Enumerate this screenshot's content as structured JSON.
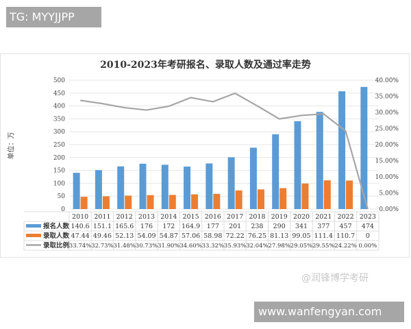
{
  "watermarks": {
    "top_left": "TG: MYYJJPP",
    "bottom_right": "www.wanfengyan.com",
    "logo": "@润锋博学考研"
  },
  "chart_data": {
    "type": "bar+line",
    "title": "2010-2023年考研报名、录取人数及通过率走势",
    "ylabel": "单位：万",
    "categories": [
      "2010",
      "2011",
      "2012",
      "2013",
      "2014",
      "2015",
      "2016",
      "2017",
      "2018",
      "2019",
      "2020",
      "2021",
      "2022",
      "2023"
    ],
    "ylim": [
      0,
      500
    ],
    "y_ticks": [
      "0",
      "50",
      "100",
      "150",
      "200",
      "250",
      "300",
      "350",
      "400",
      "450",
      "500"
    ],
    "y2lim": [
      0,
      40
    ],
    "y2_ticks": [
      "0.00%",
      "5.00%",
      "10.00%",
      "15.00%",
      "20.00%",
      "25.00%",
      "30.00%",
      "35.00%",
      "40.00%"
    ],
    "grid": true,
    "legend": "data-table",
    "series": [
      {
        "name": "报名人数",
        "type": "bar",
        "color": "#5b9bd5",
        "values": [
          140.6,
          151.1,
          165.6,
          176,
          172,
          164.9,
          177,
          201,
          238,
          290,
          341,
          377,
          457,
          474
        ],
        "labels": [
          "140.6",
          "151.1",
          "165.6",
          "176",
          "172",
          "164.9",
          "177",
          "201",
          "238",
          "290",
          "341",
          "377",
          "457",
          "474"
        ]
      },
      {
        "name": "录取人数",
        "type": "bar",
        "color": "#ed7d31",
        "values": [
          47.44,
          49.46,
          52.13,
          54.09,
          54.87,
          57.06,
          58.98,
          72.22,
          76.25,
          81.13,
          99.05,
          111.4,
          110.7,
          0
        ],
        "labels": [
          "47.44",
          "49.46",
          "52.13",
          "54.09",
          "54.87",
          "57.06",
          "58.98",
          "72.22",
          "76.25",
          "81.13",
          "99.05",
          "111.4",
          "110.7",
          "0"
        ]
      },
      {
        "name": "录取比例",
        "type": "line",
        "axis": "right",
        "color": "#a5a5a5",
        "values": [
          33.74,
          32.73,
          31.48,
          30.73,
          31.9,
          34.6,
          33.32,
          35.93,
          32.04,
          27.98,
          29.05,
          29.55,
          24.22,
          0.0
        ],
        "labels": [
          "33.74%",
          "32.73%",
          "31.48%",
          "30.73%",
          "31.90%",
          "34.60%",
          "33.32%",
          "35.93%",
          "32.04%",
          "27.98%",
          "29.05%",
          "29.55%",
          "24.22%",
          "0.00%"
        ]
      }
    ]
  }
}
